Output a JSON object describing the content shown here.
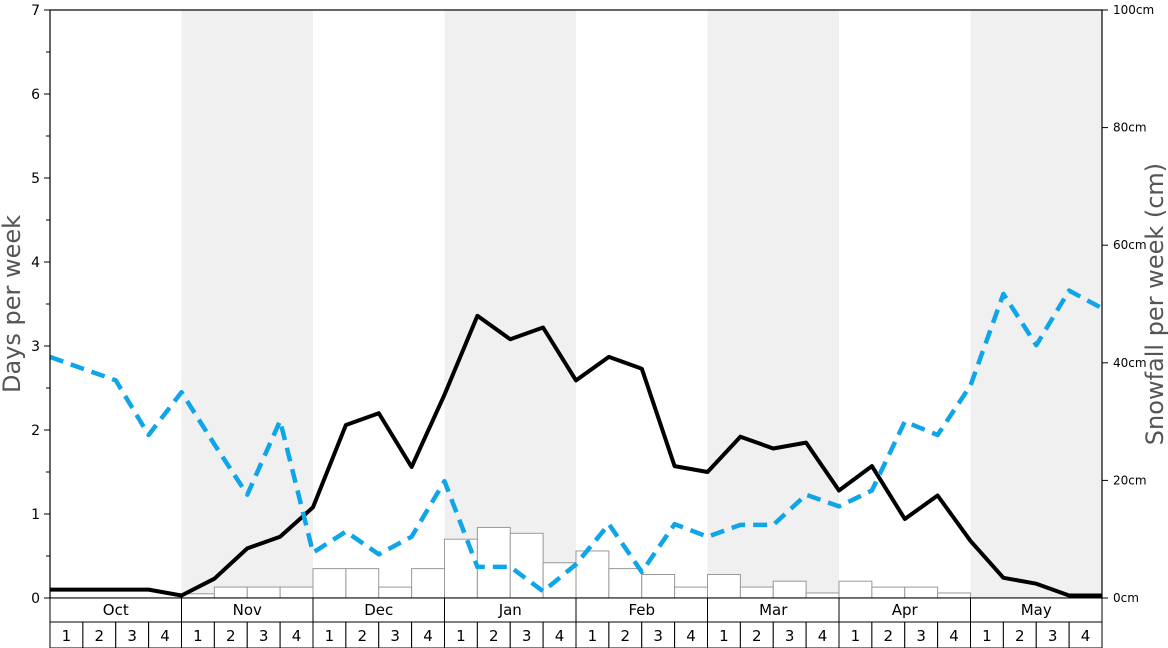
{
  "chart_data": {
    "type": "bar",
    "left_axis_label": "Days per week",
    "right_axis_label": "Snowfall per week (cm)",
    "left_ticks": [
      "0",
      "1",
      "2",
      "3",
      "4",
      "5",
      "6",
      "7"
    ],
    "right_ticks": [
      "0cm",
      "20cm",
      "40cm",
      "60cm",
      "80cm",
      "100cm"
    ],
    "left_ylim": [
      0,
      7
    ],
    "right_ylim": [
      0,
      100
    ],
    "months": [
      "Oct",
      "Nov",
      "Dec",
      "Jan",
      "Feb",
      "Mar",
      "Apr",
      "May"
    ],
    "week_labels": [
      "1",
      "2",
      "3",
      "4"
    ],
    "shaded_months": [
      "Nov",
      "Jan",
      "Mar",
      "May"
    ],
    "colors": {
      "shade": "#f0f0f0",
      "black_line": "#000000",
      "blue_line": "#0ea5e9",
      "bar_fill": "#ffffff",
      "bar_stroke": "#999999"
    },
    "series": [
      {
        "kind": "bar",
        "axis": "left",
        "values": [
          0,
          0,
          0,
          0,
          0.05,
          0.13,
          0.13,
          0.13,
          0.35,
          0.35,
          0.13,
          0.35,
          0.7,
          0.84,
          0.77,
          0.42,
          0.56,
          0.35,
          0.28,
          0.13,
          0.28,
          0.13,
          0.2,
          0.06,
          0.2,
          0.13,
          0.13,
          0.06,
          0,
          0,
          0,
          0
        ]
      },
      {
        "kind": "line",
        "style": "solid-black",
        "axis": "left",
        "values": [
          0.1,
          0.1,
          0.1,
          0.1,
          0.03,
          0.23,
          0.59,
          0.73,
          1.08,
          2.06,
          2.2,
          1.56,
          2.42,
          3.36,
          3.08,
          3.22,
          2.59,
          2.87,
          2.73,
          1.57,
          1.5,
          1.92,
          1.78,
          1.85,
          1.28,
          1.57,
          0.94,
          1.22,
          0.68,
          0.24,
          0.17,
          0.03,
          0.03
        ]
      },
      {
        "kind": "line",
        "style": "dashed-blue",
        "axis": "left",
        "values": [
          2.87,
          2.73,
          2.59,
          1.94,
          2.45,
          1.83,
          1.23,
          2.11,
          0.54,
          0.79,
          0.52,
          0.73,
          1.39,
          0.37,
          0.37,
          0.08,
          0.4,
          0.88,
          0.31,
          0.88,
          0.73,
          0.87,
          0.87,
          1.23,
          1.09,
          1.28,
          2.1,
          1.94,
          2.53,
          3.62,
          3.01,
          3.66,
          3.45
        ]
      }
    ]
  }
}
